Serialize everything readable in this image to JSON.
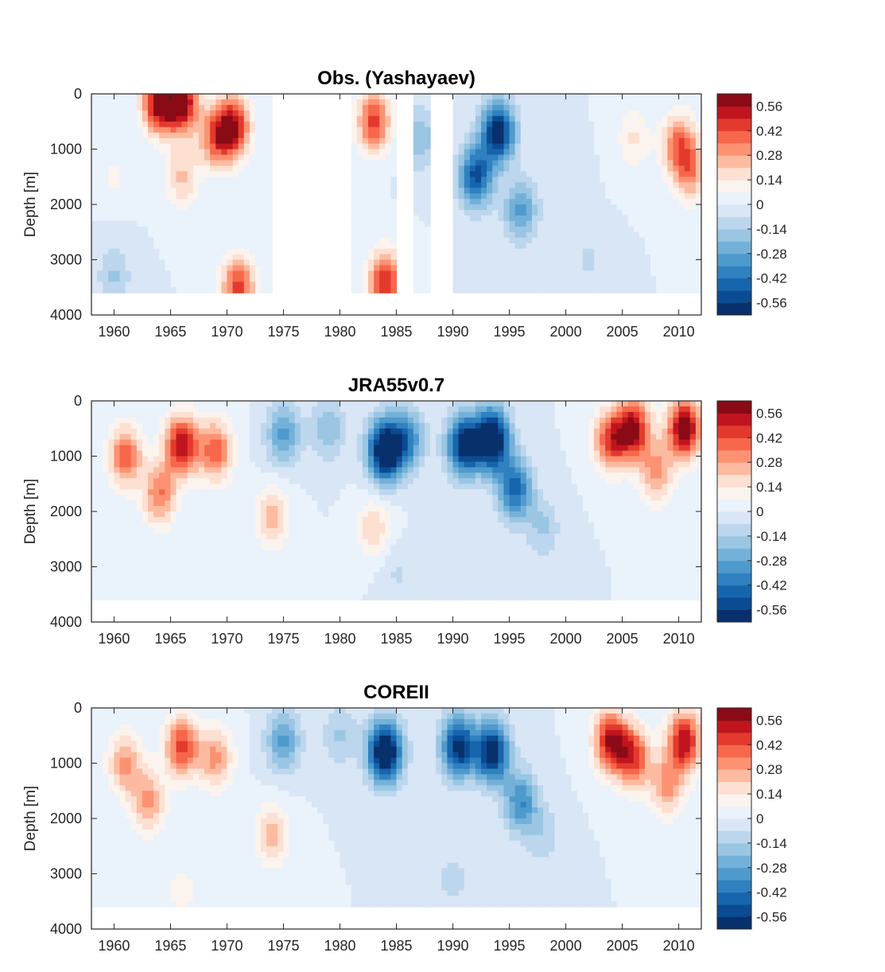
{
  "chart_data": [
    {
      "type": "heatmap",
      "title": "Obs. (Yashayaev)",
      "ylabel": "Depth [m]",
      "xlabel": "",
      "xlim": [
        1958,
        2012
      ],
      "ylim": [
        4000,
        0
      ],
      "xticks": [
        "1960",
        "1965",
        "1970",
        "1975",
        "1980",
        "1985",
        "1990",
        "1995",
        "2000",
        "2005",
        "2010"
      ],
      "yticks": [
        "0",
        "1000",
        "2000",
        "3000",
        "4000"
      ],
      "colorbar": {
        "ticks": [
          "0.56",
          "0.42",
          "0.28",
          "0.14",
          "0",
          "-0.14",
          "-0.28",
          "-0.42",
          "-0.56"
        ],
        "range": [
          -0.63,
          0.63
        ],
        "levels": 18
      },
      "gaps": [
        [
          1974,
          1981.2
        ],
        [
          1985.2,
          1986.3
        ],
        [
          1987.8,
          1990
        ]
      ],
      "max_depth": 3600,
      "anomaly_pattern": [
        {
          "year": 1960,
          "depth": 1500,
          "value": 0.08
        },
        {
          "year": 1964,
          "depth": 150,
          "value": 0.6
        },
        {
          "year": 1966,
          "depth": 150,
          "value": 0.6
        },
        {
          "year": 1969,
          "depth": 800,
          "value": 0.35
        },
        {
          "year": 1970.5,
          "depth": 600,
          "value": 0.55
        },
        {
          "year": 1966,
          "depth": 1500,
          "value": 0.22
        },
        {
          "year": 1971,
          "depth": 3500,
          "value": 0.45
        },
        {
          "year": 1960,
          "depth": 3300,
          "value": -0.15
        },
        {
          "year": 1983,
          "depth": 500,
          "value": 0.45
        },
        {
          "year": 1984,
          "depth": 3400,
          "value": 0.5
        },
        {
          "year": 1987,
          "depth": 800,
          "value": -0.2
        },
        {
          "year": 1994,
          "depth": 700,
          "value": -0.62
        },
        {
          "year": 1992,
          "depth": 1500,
          "value": -0.5
        },
        {
          "year": 1996,
          "depth": 2100,
          "value": -0.3
        },
        {
          "year": 2000,
          "depth": 1500,
          "value": -0.05
        },
        {
          "year": 2006,
          "depth": 800,
          "value": 0.15
        },
        {
          "year": 2010,
          "depth": 900,
          "value": 0.35
        },
        {
          "year": 2011,
          "depth": 1400,
          "value": 0.3
        },
        {
          "year": 2002,
          "depth": 3000,
          "value": -0.08
        }
      ]
    },
    {
      "type": "heatmap",
      "title": "JRA55v0.7",
      "ylabel": "Depth [m]",
      "xlabel": "",
      "xlim": [
        1958,
        2012
      ],
      "ylim": [
        4000,
        0
      ],
      "xticks": [
        "1960",
        "1965",
        "1970",
        "1975",
        "1980",
        "1985",
        "1990",
        "1995",
        "2000",
        "2005",
        "2010"
      ],
      "yticks": [
        "0",
        "1000",
        "2000",
        "3000",
        "4000"
      ],
      "colorbar": {
        "ticks": [
          "0.56",
          "0.42",
          "0.28",
          "0.14",
          "0",
          "-0.14",
          "-0.28",
          "-0.42",
          "-0.56"
        ],
        "range": [
          -0.63,
          0.63
        ],
        "levels": 18
      },
      "gaps": [],
      "max_depth": 3600,
      "anomaly_pattern": [
        {
          "year": 1961,
          "depth": 1000,
          "value": 0.4
        },
        {
          "year": 1966,
          "depth": 800,
          "value": 0.55
        },
        {
          "year": 1969,
          "depth": 900,
          "value": 0.4
        },
        {
          "year": 1964,
          "depth": 1700,
          "value": 0.35
        },
        {
          "year": 1974,
          "depth": 2100,
          "value": 0.25
        },
        {
          "year": 1975,
          "depth": 600,
          "value": -0.3
        },
        {
          "year": 1979,
          "depth": 500,
          "value": -0.2
        },
        {
          "year": 1984,
          "depth": 900,
          "value": -0.75
        },
        {
          "year": 1986,
          "depth": 700,
          "value": -0.35
        },
        {
          "year": 1983,
          "depth": 2300,
          "value": 0.2
        },
        {
          "year": 1991,
          "depth": 800,
          "value": -0.62
        },
        {
          "year": 1993.5,
          "depth": 700,
          "value": -0.75
        },
        {
          "year": 1995.5,
          "depth": 1600,
          "value": -0.45
        },
        {
          "year": 1998,
          "depth": 2300,
          "value": -0.15
        },
        {
          "year": 2004,
          "depth": 700,
          "value": 0.45
        },
        {
          "year": 2006,
          "depth": 500,
          "value": 0.55
        },
        {
          "year": 2010.5,
          "depth": 500,
          "value": 0.65
        },
        {
          "year": 2008,
          "depth": 1300,
          "value": 0.3
        },
        {
          "year": 1965,
          "depth": 3100,
          "value": 0.05
        },
        {
          "year": 1985,
          "depth": 3100,
          "value": -0.08
        }
      ]
    },
    {
      "type": "heatmap",
      "title": "COREII",
      "ylabel": "Depth [m]",
      "xlabel": "",
      "xlim": [
        1958,
        2012
      ],
      "ylim": [
        4000,
        0
      ],
      "xticks": [
        "1960",
        "1965",
        "1970",
        "1975",
        "1980",
        "1985",
        "1990",
        "1995",
        "2000",
        "2005",
        "2010"
      ],
      "yticks": [
        "0",
        "1000",
        "2000",
        "3000",
        "4000"
      ],
      "colorbar": {
        "ticks": [
          "0.56",
          "0.42",
          "0.28",
          "0.14",
          "0",
          "-0.14",
          "-0.28",
          "-0.42",
          "-0.56"
        ],
        "range": [
          -0.63,
          0.63
        ],
        "levels": 18
      },
      "gaps": [],
      "max_depth": 3600,
      "anomaly_pattern": [
        {
          "year": 1961,
          "depth": 1000,
          "value": 0.3
        },
        {
          "year": 1966,
          "depth": 700,
          "value": 0.45
        },
        {
          "year": 1969,
          "depth": 900,
          "value": 0.3
        },
        {
          "year": 1963,
          "depth": 1700,
          "value": 0.3
        },
        {
          "year": 1974,
          "depth": 2300,
          "value": 0.25
        },
        {
          "year": 1975,
          "depth": 600,
          "value": -0.3
        },
        {
          "year": 1980,
          "depth": 500,
          "value": -0.15
        },
        {
          "year": 1984,
          "depth": 800,
          "value": -0.75
        },
        {
          "year": 1990.5,
          "depth": 700,
          "value": -0.6
        },
        {
          "year": 1993.5,
          "depth": 800,
          "value": -0.62
        },
        {
          "year": 1996,
          "depth": 1700,
          "value": -0.35
        },
        {
          "year": 1998,
          "depth": 2300,
          "value": -0.12
        },
        {
          "year": 2004,
          "depth": 600,
          "value": 0.55
        },
        {
          "year": 2006,
          "depth": 900,
          "value": 0.45
        },
        {
          "year": 2010.5,
          "depth": 600,
          "value": 0.55
        },
        {
          "year": 2009,
          "depth": 1400,
          "value": 0.3
        },
        {
          "year": 1966,
          "depth": 3300,
          "value": 0.1
        },
        {
          "year": 1990,
          "depth": 3100,
          "value": -0.1
        }
      ]
    }
  ]
}
